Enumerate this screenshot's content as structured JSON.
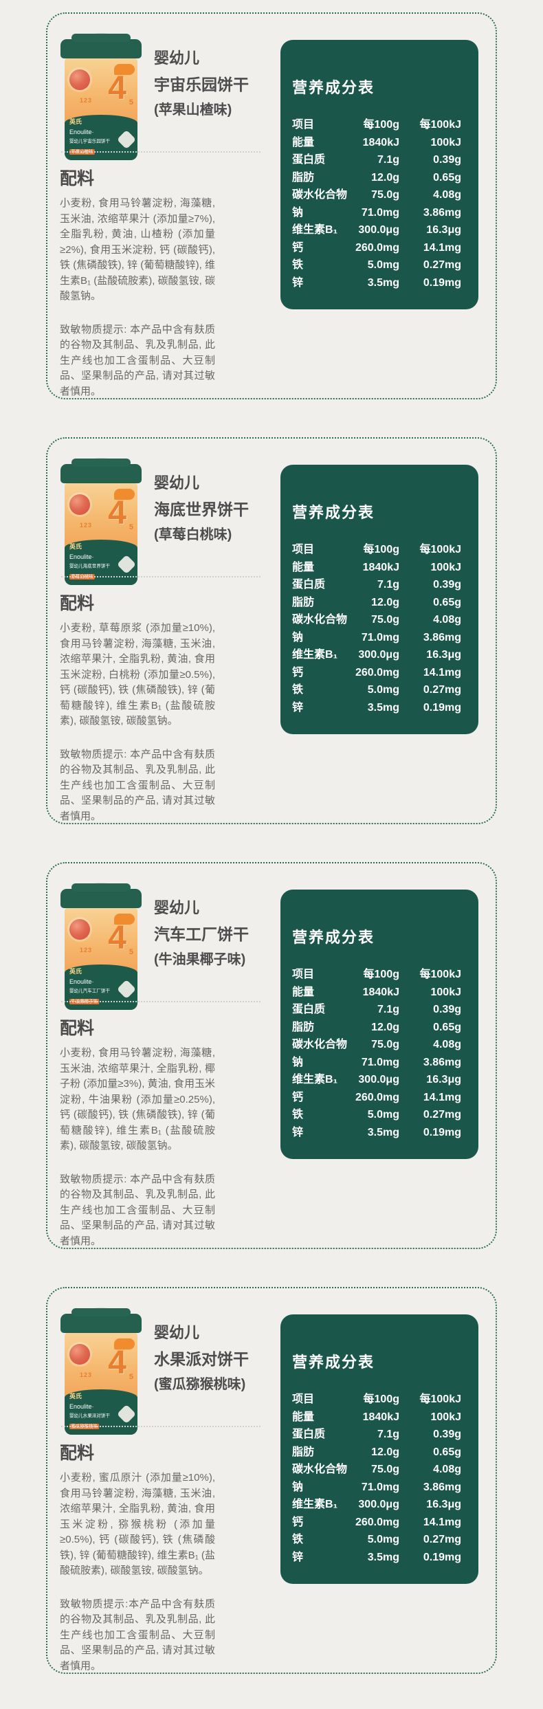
{
  "page": {
    "background": "#f0efec",
    "card_border_color": "#2b6b58",
    "table_bg_color": "#1a574a"
  },
  "nutrition": {
    "title": "营养成分表",
    "headers": [
      "项目",
      "每100g",
      "每100kJ"
    ],
    "rows": [
      [
        "能量",
        "1840kJ",
        "100kJ"
      ],
      [
        "蛋白质",
        "7.1g",
        "0.39g"
      ],
      [
        "脂肪",
        "12.0g",
        "0.65g"
      ],
      [
        "碳水化合物",
        "75.0g",
        "4.08g"
      ],
      [
        "钠",
        "71.0mg",
        "3.86mg"
      ],
      [
        "维生素B₁",
        "300.0μg",
        "16.3μg"
      ],
      [
        "钙",
        "260.0mg",
        "14.1mg"
      ],
      [
        "铁",
        "5.0mg",
        "0.27mg"
      ],
      [
        "锌",
        "3.5mg",
        "0.19mg"
      ]
    ]
  },
  "cards": [
    {
      "age_label": "婴幼儿",
      "product_name": "宇宙乐园饼干",
      "flavor": "(苹果山楂味)",
      "ingredients_label": "配料",
      "ingredients": "小麦粉, 食用马铃薯淀粉, 海藻糖, 玉米油, 浓缩苹果汁 (添加量≥7%), 全脂乳粉, 黄油, 山楂粉 (添加量≥2%), 食用玉米淀粉, 钙 (碳酸钙), 铁 (焦磷酸铁), 锌 (葡萄糖酸锌), 维生素B₁ (盐酸硫胺素), 碳酸氢铵, 碳酸氢钠。",
      "allergen": "致敏物质提示: 本产品中含有麸质的谷物及其制品、乳及乳制品, 此生产线也加工含蛋制品、大豆制品、坚果制品的产品, 请对其过敏者慎用。",
      "can": {
        "number": "4",
        "number_left": "123",
        "number_right": "5",
        "brand_cn": "英氏",
        "brand_en": "Enoulite·",
        "name": "婴幼儿宇宙乐园饼干",
        "flavor_tag": "苹果山楂味",
        "net": "净含量:85克"
      }
    },
    {
      "age_label": "婴幼儿",
      "product_name": "海底世界饼干",
      "flavor": "(草莓白桃味)",
      "ingredients_label": "配料",
      "ingredients": "小麦粉, 草莓原浆 (添加量≥10%), 食用马铃薯淀粉, 海藻糖, 玉米油, 浓缩苹果汁, 全脂乳粉, 黄油, 食用玉米淀粉, 白桃粉 (添加量≥0.5%), 钙 (碳酸钙), 铁 (焦磷酸铁), 锌 (葡萄糖酸锌), 维生素B₁ (盐酸硫胺素), 碳酸氢铵, 碳酸氢钠。",
      "allergen": "致敏物质提示: 本产品中含有麸质的谷物及其制品、乳及乳制品, 此生产线也加工含蛋制品、大豆制品、坚果制品的产品, 请对其过敏者慎用。",
      "can": {
        "number": "4",
        "number_left": "123",
        "number_right": "5",
        "brand_cn": "英氏",
        "brand_en": "Enoulite·",
        "name": "婴幼儿海底世界饼干",
        "flavor_tag": "草莓白桃味",
        "net": "净含量:85克"
      }
    },
    {
      "age_label": "婴幼儿",
      "product_name": "汽车工厂饼干",
      "flavor": "(牛油果椰子味)",
      "ingredients_label": "配料",
      "ingredients": "小麦粉, 食用马铃薯淀粉, 海藻糖, 玉米油, 浓缩苹果汁, 全脂乳粉, 椰子粉 (添加量≥3%), 黄油, 食用玉米淀粉, 牛油果粉 (添加量≥0.25%), 钙 (碳酸钙), 铁 (焦磷酸铁), 锌 (葡萄糖酸锌), 维生素B₁ (盐酸硫胺素), 碳酸氢铵, 碳酸氢钠。",
      "allergen": "致敏物质提示: 本产品中含有麸质的谷物及其制品、乳及乳制品, 此生产线也加工含蛋制品、大豆制品、坚果制品的产品, 请对其过敏者慎用。",
      "can": {
        "number": "4",
        "number_left": "123",
        "number_right": "5",
        "brand_cn": "英氏",
        "brand_en": "Enoulite·",
        "name": "婴幼儿汽车工厂饼干",
        "flavor_tag": "牛油果椰子味",
        "net": "净含量:85克"
      }
    },
    {
      "age_label": "婴幼儿",
      "product_name": "水果派对饼干",
      "flavor": "(蜜瓜猕猴桃味)",
      "ingredients_label": "配料",
      "ingredients": "小麦粉, 蜜瓜原汁 (添加量≥10%), 食用马铃薯淀粉, 海藻糖, 玉米油, 浓缩苹果汁, 全脂乳粉, 黄油, 食用玉米淀粉, 猕猴桃粉 (添加量≥0.5%), 钙 (碳酸钙), 铁 (焦磷酸铁), 锌 (葡萄糖酸锌), 维生素B₁ (盐酸硫胺素), 碳酸氢铵, 碳酸氢钠。",
      "allergen": "致敏物质提示:本产品中含有麸质的谷物及其制品、乳及乳制品, 此生产线也加工含蛋制品、大豆制品、坚果制品的产品, 请对其过敏者慎用。",
      "can": {
        "number": "4",
        "number_left": "123",
        "number_right": "5",
        "brand_cn": "英氏",
        "brand_en": "Enoulite·",
        "name": "婴幼儿水果派对饼干",
        "flavor_tag": "蜜瓜猕猴桃味",
        "net": "净含量:85克"
      }
    }
  ]
}
